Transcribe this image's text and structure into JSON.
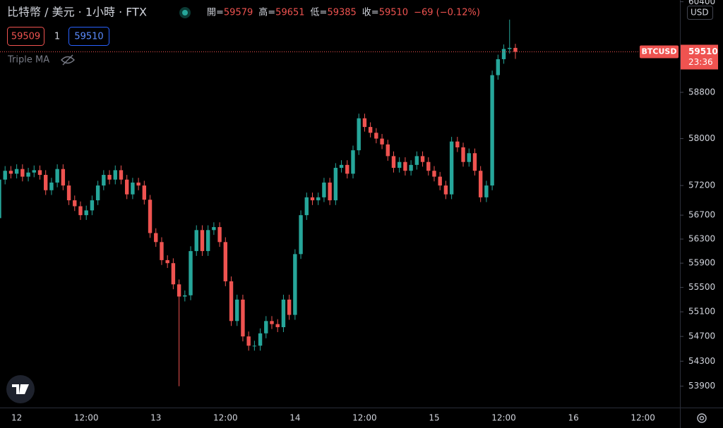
{
  "ui": {
    "title": "比特幣 / 美元 · 1小時 · FTX",
    "sell_price": "59509",
    "quantity": "1",
    "buy_price": "59510",
    "indicator": "Triple MA",
    "symbol_label": "BTCUSD",
    "countdown": "23:36",
    "currency": "USD",
    "ohlc_labels": [
      "開=",
      "高=",
      "低=",
      "收="
    ],
    "change": "−69 (−0.12%)"
  },
  "chart_data": {
    "type": "candlestick",
    "log_scale": true,
    "up_color": "#26a69a",
    "down_color": "#ef5350",
    "ylim": [
      53560,
      60430
    ],
    "yticks": [
      60400,
      58800,
      58000,
      57200,
      56700,
      56300,
      55900,
      55500,
      55100,
      54700,
      54300,
      53900
    ],
    "categories": [
      null,
      null,
      null,
      "12",
      null,
      null,
      null,
      null,
      null,
      null,
      null,
      null,
      null,
      null,
      null,
      "12:00",
      null,
      null,
      null,
      null,
      null,
      null,
      null,
      null,
      null,
      null,
      null,
      "13",
      null,
      null,
      null,
      null,
      null,
      null,
      null,
      null,
      null,
      null,
      null,
      "12:00",
      null,
      null,
      null,
      null,
      null,
      null,
      null,
      null,
      null,
      null,
      null,
      "14",
      null,
      null,
      null,
      null,
      null,
      null,
      null,
      null,
      null,
      null,
      null,
      "12:00",
      null,
      null,
      null,
      null,
      null,
      null,
      null,
      null,
      null,
      null,
      null,
      "15",
      null,
      null,
      null,
      null,
      null,
      null,
      null,
      null,
      null,
      null,
      null,
      "12:00",
      null,
      null,
      null,
      null,
      null,
      null,
      null,
      null,
      null,
      null,
      null,
      "16",
      null,
      null,
      null,
      null,
      null,
      null,
      null,
      null,
      null,
      null,
      null,
      "12:00",
      null,
      null,
      null,
      null,
      null
    ],
    "open": [
      56650,
      57300,
      57450,
      57400,
      57480,
      57350,
      57420,
      57460,
      57380,
      57120,
      57250,
      57480,
      57200,
      56950,
      56850,
      56700,
      56780,
      56950,
      57200,
      57380,
      57300,
      57460,
      57300,
      57050,
      57250,
      57200,
      56960,
      56400,
      56250,
      55950,
      55900,
      55550,
      55350,
      55370,
      56100,
      56450,
      56100,
      56450,
      56500,
      56250,
      55600,
      54950,
      55300,
      54700,
      54550,
      54550,
      54750,
      54950,
      54900,
      54850,
      55300,
      55050,
      56050,
      56700,
      57000,
      56950,
      57000,
      57250,
      56950,
      57500,
      57550,
      57400,
      57800,
      58350,
      58200,
      58100,
      58000,
      57900,
      57700,
      57500,
      57600,
      57450,
      57550,
      57700,
      57600,
      57450,
      57350,
      57200,
      57050,
      57950,
      57850,
      57600,
      57750,
      57450,
      57000,
      57200,
      59100,
      59380,
      59560,
      59579,
      null,
      null,
      null,
      null,
      null,
      null,
      null,
      null,
      null,
      null,
      null,
      null,
      null,
      null,
      null,
      null,
      null,
      null,
      null,
      null,
      null,
      null,
      null,
      null,
      null,
      null,
      null
    ],
    "high": [
      57380,
      57530,
      57530,
      57560,
      57560,
      57500,
      57540,
      57540,
      57460,
      57330,
      57560,
      57560,
      57280,
      57030,
      56930,
      56860,
      57030,
      57280,
      57460,
      57460,
      57540,
      57540,
      57380,
      57330,
      57330,
      57280,
      57040,
      56480,
      56330,
      56030,
      55980,
      55630,
      55450,
      56180,
      56530,
      56530,
      56530,
      56580,
      56580,
      56330,
      55680,
      55380,
      55380,
      54780,
      54630,
      54830,
      55030,
      55030,
      54980,
      55380,
      55380,
      56130,
      56780,
      57080,
      57080,
      57080,
      57330,
      57330,
      57580,
      57630,
      57630,
      57880,
      58430,
      58430,
      58280,
      58180,
      58080,
      57980,
      57780,
      57680,
      57680,
      57630,
      57780,
      57780,
      57680,
      57530,
      57430,
      57280,
      58030,
      58030,
      57930,
      57830,
      57830,
      57530,
      57280,
      59180,
      59460,
      59640,
      60080,
      59651,
      null,
      null,
      null,
      null,
      null,
      null,
      null,
      null,
      null,
      null,
      null,
      null,
      null,
      null,
      null,
      null,
      null,
      null,
      null,
      null,
      null,
      null,
      null,
      null,
      null,
      null,
      null
    ],
    "low": [
      56570,
      57220,
      57320,
      57320,
      57270,
      57270,
      57340,
      57300,
      57040,
      57040,
      57170,
      57120,
      56870,
      56770,
      56620,
      56620,
      56700,
      56870,
      57120,
      57220,
      57220,
      57220,
      56970,
      56970,
      57120,
      56880,
      56320,
      56170,
      55870,
      55820,
      55470,
      53900,
      55270,
      55290,
      56020,
      56020,
      56020,
      56370,
      56170,
      55520,
      54870,
      54870,
      54620,
      54470,
      54470,
      54470,
      54670,
      54820,
      54770,
      54770,
      54970,
      54970,
      55970,
      56620,
      56870,
      56870,
      56920,
      56870,
      56870,
      57420,
      57320,
      57320,
      57720,
      58120,
      58020,
      57920,
      57820,
      57620,
      57420,
      57420,
      57370,
      57370,
      57470,
      57520,
      57370,
      57270,
      57120,
      56970,
      56970,
      57770,
      57520,
      57520,
      57370,
      56920,
      56920,
      57120,
      59020,
      59300,
      59480,
      59385,
      null,
      null,
      null,
      null,
      null,
      null,
      null,
      null,
      null,
      null,
      null,
      null,
      null,
      null,
      null,
      null,
      null,
      null,
      null,
      null,
      null,
      null,
      null,
      null,
      null,
      null,
      null
    ],
    "close": [
      57300,
      57450,
      57400,
      57480,
      57350,
      57420,
      57460,
      57380,
      57120,
      57250,
      57480,
      57200,
      56950,
      56850,
      56700,
      56780,
      56950,
      57200,
      57380,
      57300,
      57460,
      57300,
      57050,
      57250,
      57200,
      56960,
      56400,
      56250,
      55950,
      55900,
      55550,
      55350,
      55370,
      56100,
      56450,
      56100,
      56450,
      56500,
      56250,
      55600,
      54950,
      55300,
      54700,
      54550,
      54550,
      54750,
      54950,
      54900,
      54850,
      55300,
      55050,
      56050,
      56700,
      57000,
      56950,
      57000,
      57250,
      56950,
      57500,
      57550,
      57400,
      57800,
      58350,
      58200,
      58100,
      58000,
      57900,
      57700,
      57500,
      57600,
      57450,
      57550,
      57700,
      57600,
      57450,
      57350,
      57200,
      57050,
      57950,
      57850,
      57600,
      57750,
      57450,
      57000,
      57200,
      59100,
      59380,
      59560,
      59579,
      59510,
      null,
      null,
      null,
      null,
      null,
      null,
      null,
      null,
      null,
      null,
      null,
      null,
      null,
      null,
      null,
      null,
      null,
      null,
      null,
      null,
      null,
      null,
      null,
      null,
      null,
      null,
      null
    ]
  }
}
